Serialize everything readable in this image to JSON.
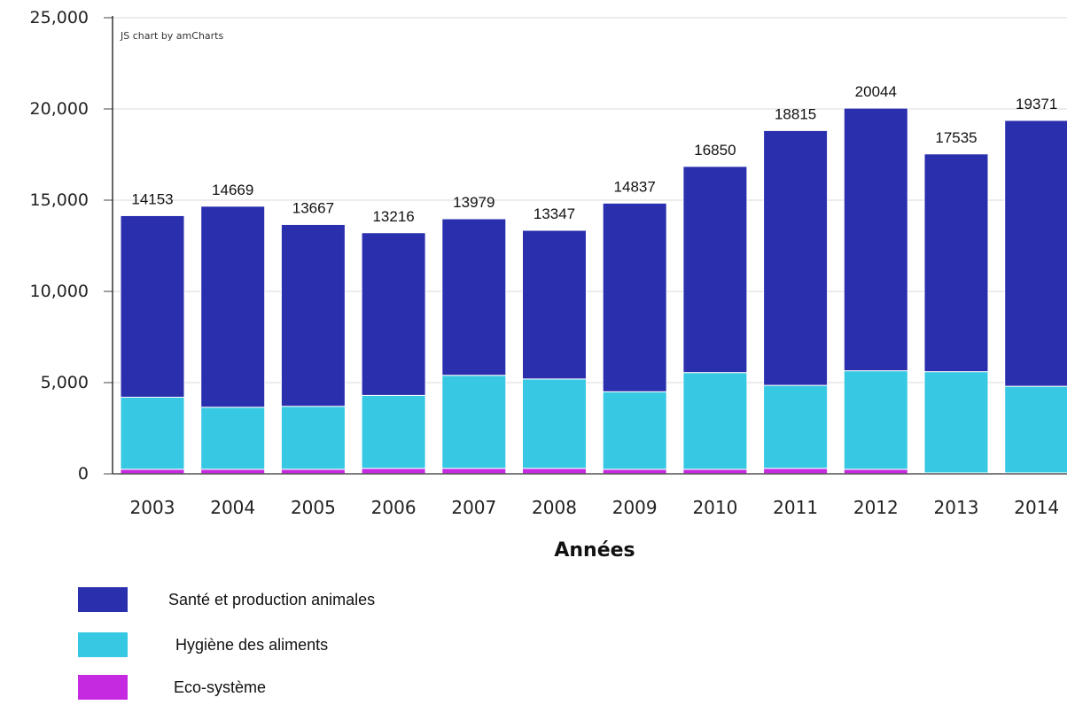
{
  "chart_data": {
    "type": "bar",
    "stacked": true,
    "credit": "JS chart by amCharts",
    "xlabel": "Années",
    "ylabel": "",
    "ylim": [
      0,
      25000
    ],
    "yticks": [
      0,
      5000,
      10000,
      15000,
      20000,
      25000
    ],
    "ytick_labels": [
      "0",
      "5,000",
      "10,000",
      "15,000",
      "20,000",
      "25,000"
    ],
    "grid": true,
    "legend_position": "bottom-left",
    "categories": [
      "2003",
      "2004",
      "2005",
      "2006",
      "2007",
      "2008",
      "2009",
      "2010",
      "2011",
      "2012",
      "2013",
      "2014"
    ],
    "totals": [
      14153,
      14669,
      13667,
      13216,
      13979,
      13347,
      14837,
      16850,
      18815,
      20044,
      17535,
      19371
    ],
    "series": [
      {
        "name": "Eco-système",
        "color": "#c62ae0",
        "values": [
          250,
          250,
          250,
          300,
          300,
          300,
          250,
          250,
          300,
          250,
          50,
          50
        ]
      },
      {
        "name": "Hygiène des aliments",
        "color": "#37c8e3",
        "values": [
          3950,
          3400,
          3450,
          4000,
          5100,
          4900,
          4250,
          5300,
          4550,
          5400,
          5550,
          4750
        ]
      },
      {
        "name": "Santé et production animales",
        "color": "#2a2fae",
        "values": [
          9953,
          11019,
          9967,
          8916,
          8579,
          8147,
          10337,
          11300,
          13965,
          14394,
          11935,
          14571
        ]
      }
    ]
  }
}
